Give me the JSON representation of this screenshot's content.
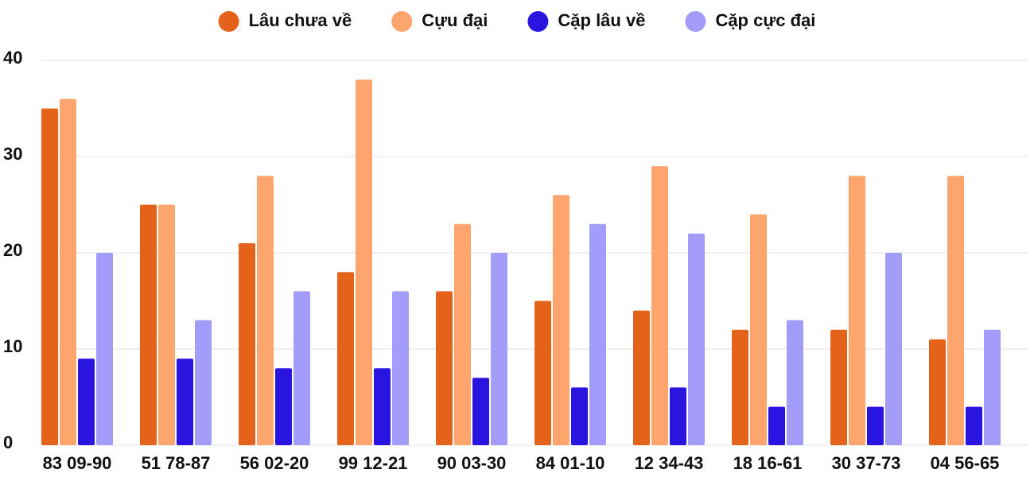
{
  "chart_data": {
    "type": "bar",
    "categories": [
      "83 09-90",
      "51 78-87",
      "56 02-20",
      "99 12-21",
      "90 03-30",
      "84 01-10",
      "12 34-43",
      "18 16-61",
      "30 37-73",
      "04 56-65"
    ],
    "series": [
      {
        "name": "Lâu chưa về",
        "color": "#e4621a",
        "values": [
          35,
          25,
          21,
          18,
          16,
          15,
          14,
          12,
          12,
          11
        ]
      },
      {
        "name": "Cựu đại",
        "color": "#fda56c",
        "values": [
          36,
          25,
          28,
          38,
          23,
          26,
          29,
          24,
          28,
          28
        ]
      },
      {
        "name": "Cặp lâu về",
        "color": "#2a14e0",
        "values": [
          9,
          9,
          8,
          8,
          7,
          6,
          6,
          4,
          4,
          4
        ]
      },
      {
        "name": "Cặp cực đại",
        "color": "#a39cfb",
        "values": [
          20,
          13,
          16,
          16,
          20,
          23,
          22,
          13,
          20,
          12
        ]
      }
    ],
    "ylim": [
      0,
      40
    ],
    "yticks": [
      0,
      10,
      20,
      30,
      40
    ],
    "grid": true,
    "legend": "top"
  }
}
